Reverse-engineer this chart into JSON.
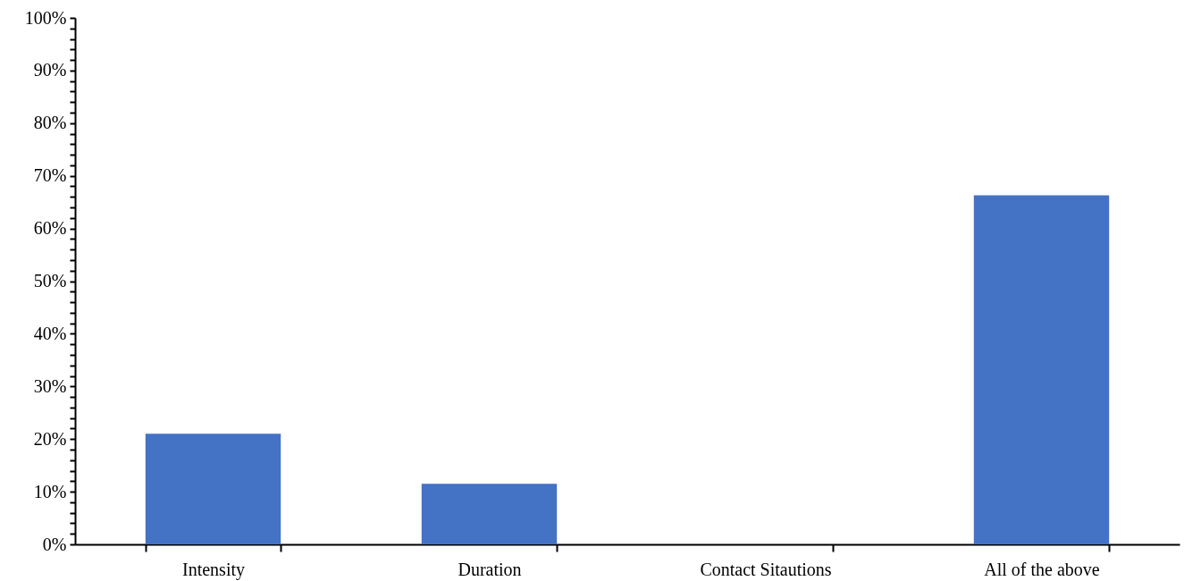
{
  "chart_data": {
    "type": "bar",
    "categories": [
      "Intensity",
      "Duration",
      "Contact Sitautions",
      "All of the above"
    ],
    "values": [
      21.0,
      11.5,
      0,
      66.3
    ],
    "color": "#4472c4",
    "ylim": [
      0,
      100
    ],
    "yticks": [
      {
        "value": 0,
        "label": "0%"
      },
      {
        "value": 2,
        "label": null
      },
      {
        "value": 4,
        "label": null
      },
      {
        "value": 6,
        "label": null
      },
      {
        "value": 8,
        "label": null
      },
      {
        "value": 10,
        "label": "10%"
      },
      {
        "value": 12,
        "label": null
      },
      {
        "value": 14,
        "label": null
      },
      {
        "value": 16,
        "label": null
      },
      {
        "value": 18,
        "label": null
      },
      {
        "value": 20,
        "label": "20%"
      },
      {
        "value": 22,
        "label": null
      },
      {
        "value": 24,
        "label": null
      },
      {
        "value": 26,
        "label": null
      },
      {
        "value": 28,
        "label": null
      },
      {
        "value": 30,
        "label": "30%"
      },
      {
        "value": 32,
        "label": null
      },
      {
        "value": 34,
        "label": null
      },
      {
        "value": 36,
        "label": null
      },
      {
        "value": 38,
        "label": null
      },
      {
        "value": 40,
        "label": "40%"
      },
      {
        "value": 42,
        "label": null
      },
      {
        "value": 44,
        "label": null
      },
      {
        "value": 46,
        "label": null
      },
      {
        "value": 48,
        "label": null
      },
      {
        "value": 50,
        "label": "50%"
      },
      {
        "value": 52,
        "label": null
      },
      {
        "value": 54,
        "label": null
      },
      {
        "value": 56,
        "label": null
      },
      {
        "value": 58,
        "label": null
      },
      {
        "value": 60,
        "label": "60%"
      },
      {
        "value": 62,
        "label": null
      },
      {
        "value": 64,
        "label": null
      },
      {
        "value": 66,
        "label": null
      },
      {
        "value": 68,
        "label": null
      },
      {
        "value": 70,
        "label": "70%"
      },
      {
        "value": 72,
        "label": null
      },
      {
        "value": 74,
        "label": null
      },
      {
        "value": 76,
        "label": null
      },
      {
        "value": 78,
        "label": null
      },
      {
        "value": 80,
        "label": "80%"
      },
      {
        "value": 82,
        "label": null
      },
      {
        "value": 84,
        "label": null
      },
      {
        "value": 86,
        "label": null
      },
      {
        "value": 88,
        "label": null
      },
      {
        "value": 90,
        "label": "90%"
      },
      {
        "value": 92,
        "label": null
      },
      {
        "value": 94,
        "label": null
      },
      {
        "value": 96,
        "label": null
      },
      {
        "value": 98,
        "label": null
      },
      {
        "value": 100,
        "label": "100%"
      }
    ],
    "grid": false
  }
}
